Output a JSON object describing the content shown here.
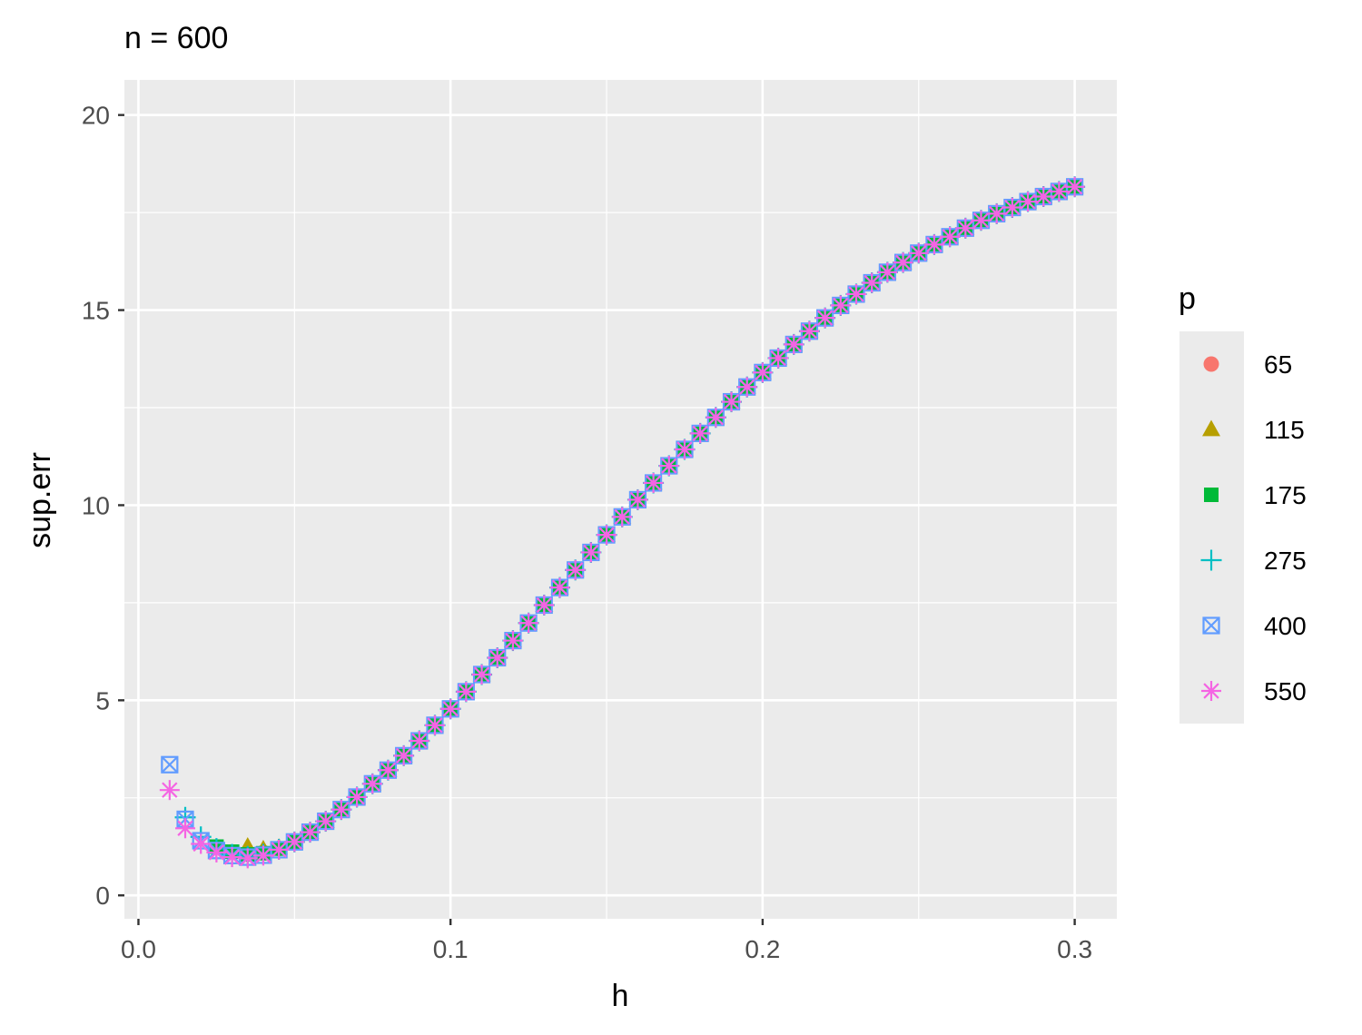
{
  "chart_data": {
    "type": "scatter",
    "title": "n = 600",
    "xlabel": "h",
    "ylabel": "sup.err",
    "xlim": [
      -0.0045,
      0.3135
    ],
    "ylim": [
      -0.6,
      20.9
    ],
    "x_ticks": [
      0.0,
      0.1,
      0.2,
      0.3
    ],
    "x_tick_labels": [
      "0.0",
      "0.1",
      "0.2",
      "0.3"
    ],
    "y_ticks": [
      0,
      5,
      10,
      15,
      20
    ],
    "y_tick_labels": [
      "0",
      "5",
      "10",
      "15",
      "20"
    ],
    "grid": true,
    "background": "#ebebeb",
    "legend": {
      "title": "p",
      "placement": "right",
      "items": [
        {
          "label": "65",
          "shape": "circle",
          "color": "#F8766D"
        },
        {
          "label": "115",
          "shape": "triangle",
          "color": "#B79F00"
        },
        {
          "label": "175",
          "shape": "square",
          "color": "#00BA38"
        },
        {
          "label": "275",
          "shape": "plus",
          "color": "#00BFC4"
        },
        {
          "label": "400",
          "shape": "square-cross",
          "color": "#619CFF"
        },
        {
          "label": "550",
          "shape": "asterisk",
          "color": "#F564E3"
        }
      ]
    },
    "x": [
      0.01,
      0.015,
      0.02,
      0.025,
      0.03,
      0.035,
      0.04,
      0.045,
      0.05,
      0.055,
      0.06,
      0.065,
      0.07,
      0.075,
      0.08,
      0.085,
      0.09,
      0.095,
      0.1,
      0.105,
      0.11,
      0.115,
      0.12,
      0.125,
      0.13,
      0.135,
      0.14,
      0.145,
      0.15,
      0.155,
      0.16,
      0.165,
      0.17,
      0.175,
      0.18,
      0.185,
      0.19,
      0.195,
      0.2,
      0.205,
      0.21,
      0.215,
      0.22,
      0.225,
      0.23,
      0.235,
      0.24,
      0.245,
      0.25,
      0.255,
      0.26,
      0.265,
      0.27,
      0.275,
      0.28,
      0.285,
      0.29,
      0.295,
      0.3
    ],
    "series": [
      {
        "name": "65",
        "values": [
          null,
          null,
          null,
          null,
          null,
          null,
          1.1,
          1.2,
          1.37,
          1.62,
          1.9,
          2.2,
          2.52,
          2.86,
          3.21,
          3.58,
          3.96,
          4.36,
          4.78,
          5.22,
          5.66,
          6.09,
          6.53,
          6.98,
          7.44,
          7.89,
          8.34,
          8.79,
          9.24,
          9.7,
          10.14,
          10.57,
          11.01,
          11.43,
          11.84,
          12.25,
          12.65,
          13.03,
          13.4,
          13.77,
          14.12,
          14.46,
          14.8,
          15.12,
          15.41,
          15.7,
          15.97,
          16.22,
          16.46,
          16.68,
          16.88,
          17.1,
          17.3,
          17.47,
          17.63,
          17.78,
          17.91,
          18.04,
          18.16
        ]
      },
      {
        "name": "115",
        "values": [
          null,
          null,
          null,
          null,
          null,
          1.25,
          1.18,
          1.22,
          1.38,
          1.62,
          1.9,
          2.2,
          2.52,
          2.86,
          3.21,
          3.58,
          3.96,
          4.36,
          4.78,
          5.22,
          5.66,
          6.09,
          6.53,
          6.98,
          7.44,
          7.89,
          8.34,
          8.79,
          9.24,
          9.7,
          10.14,
          10.57,
          11.01,
          11.43,
          11.84,
          12.25,
          12.65,
          13.03,
          13.4,
          13.77,
          14.12,
          14.46,
          14.8,
          15.12,
          15.41,
          15.7,
          15.97,
          16.22,
          16.46,
          16.68,
          16.88,
          17.1,
          17.3,
          17.47,
          17.63,
          17.78,
          17.91,
          18.04,
          18.16
        ]
      },
      {
        "name": "175",
        "values": [
          null,
          null,
          null,
          1.25,
          1.12,
          1.05,
          1.08,
          1.2,
          1.37,
          1.62,
          1.9,
          2.2,
          2.52,
          2.86,
          3.21,
          3.58,
          3.96,
          4.36,
          4.78,
          5.22,
          5.66,
          6.09,
          6.53,
          6.98,
          7.44,
          7.89,
          8.34,
          8.79,
          9.24,
          9.7,
          10.14,
          10.57,
          11.01,
          11.43,
          11.84,
          12.25,
          12.65,
          13.03,
          13.4,
          13.77,
          14.12,
          14.46,
          14.8,
          15.12,
          15.41,
          15.7,
          15.97,
          16.22,
          16.46,
          16.68,
          16.88,
          17.1,
          17.3,
          17.47,
          17.63,
          17.78,
          17.91,
          18.04,
          18.16
        ]
      },
      {
        "name": "275",
        "values": [
          null,
          2.0,
          1.5,
          1.2,
          1.05,
          1.0,
          1.05,
          1.18,
          1.37,
          1.62,
          1.9,
          2.2,
          2.52,
          2.86,
          3.21,
          3.58,
          3.96,
          4.36,
          4.78,
          5.22,
          5.66,
          6.09,
          6.53,
          6.98,
          7.44,
          7.89,
          8.34,
          8.79,
          9.24,
          9.7,
          10.14,
          10.57,
          11.01,
          11.43,
          11.84,
          12.25,
          12.65,
          13.03,
          13.4,
          13.77,
          14.12,
          14.46,
          14.8,
          15.12,
          15.41,
          15.7,
          15.97,
          16.22,
          16.46,
          16.68,
          16.88,
          17.1,
          17.3,
          17.47,
          17.63,
          17.78,
          17.91,
          18.04,
          18.16
        ]
      },
      {
        "name": "400",
        "values": [
          3.35,
          1.95,
          1.4,
          1.15,
          1.02,
          0.98,
          1.03,
          1.17,
          1.37,
          1.62,
          1.9,
          2.2,
          2.52,
          2.86,
          3.21,
          3.58,
          3.96,
          4.36,
          4.78,
          5.22,
          5.66,
          6.09,
          6.53,
          6.98,
          7.44,
          7.89,
          8.34,
          8.79,
          9.24,
          9.7,
          10.14,
          10.57,
          11.01,
          11.43,
          11.84,
          12.25,
          12.65,
          13.03,
          13.4,
          13.77,
          14.12,
          14.46,
          14.8,
          15.12,
          15.41,
          15.7,
          15.97,
          16.22,
          16.46,
          16.68,
          16.88,
          17.1,
          17.3,
          17.47,
          17.63,
          17.78,
          17.91,
          18.04,
          18.16
        ]
      },
      {
        "name": "550",
        "values": [
          2.7,
          1.72,
          1.32,
          1.1,
          0.98,
          0.95,
          1.02,
          1.17,
          1.37,
          1.62,
          1.9,
          2.2,
          2.52,
          2.86,
          3.21,
          3.58,
          3.96,
          4.36,
          4.78,
          5.22,
          5.66,
          6.09,
          6.53,
          6.98,
          7.44,
          7.89,
          8.34,
          8.79,
          9.24,
          9.7,
          10.14,
          10.57,
          11.01,
          11.43,
          11.84,
          12.25,
          12.65,
          13.03,
          13.4,
          13.77,
          14.12,
          14.46,
          14.8,
          15.12,
          15.41,
          15.7,
          15.97,
          16.22,
          16.46,
          16.68,
          16.88,
          17.1,
          17.3,
          17.47,
          17.63,
          17.78,
          17.91,
          18.04,
          18.16
        ]
      }
    ]
  }
}
